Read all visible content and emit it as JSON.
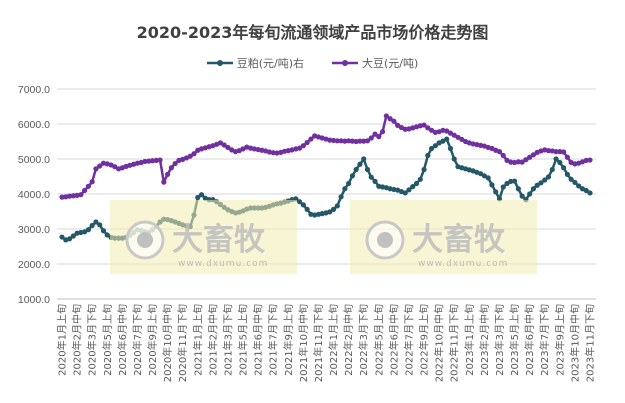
{
  "chart_data": {
    "type": "line",
    "title": "2020-2023年每旬流通领域产品市场价格走势图",
    "ylim": [
      1000,
      7000
    ],
    "y_ticks": [
      "1000.0",
      "2000.0",
      "3000.0",
      "4000.0",
      "5000.0",
      "6000.0",
      "7000.0"
    ],
    "grid": true,
    "legend_placement": "top",
    "x_tick_labels": [
      "2020年1月上旬",
      "2020年2月中旬",
      "2020年3月下旬",
      "2020年5月上旬",
      "2020年6月中旬",
      "2020年7月下旬",
      "2020年9月上旬",
      "2020年10月中旬",
      "2020年11月下旬",
      "2021年1月上旬",
      "2021年2月中旬",
      "2021年3月下旬",
      "2021年5月上旬",
      "2021年6月中旬",
      "2021年7月下旬",
      "2021年9月上旬",
      "2021年10月中旬",
      "2021年11月下旬",
      "2022年1月上旬",
      "2022年2月中旬",
      "2022年3月下旬",
      "2022年5月上旬",
      "2022年6月中旬",
      "2022年7月下旬",
      "2022年9月上旬",
      "2022年10月中旬",
      "2022年11月下旬",
      "2023年1月上旬",
      "2023年2月中旬",
      "2023年3月下旬",
      "2023年5月上旬",
      "2023年6月中旬",
      "2023年7月下旬",
      "2023年9月上旬",
      "2023年10月中旬",
      "2023年11月下旬"
    ],
    "series": [
      {
        "name": "豆粕(元/吨)右",
        "color": "#245868",
        "values": [
          2770,
          2690,
          2720,
          2800,
          2880,
          2900,
          2920,
          2980,
          3100,
          3200,
          3120,
          2950,
          2830,
          2760,
          2740,
          2740,
          2740,
          2760,
          2820,
          2900,
          2980,
          2960,
          2920,
          2900,
          2980,
          3080,
          3200,
          3280,
          3270,
          3240,
          3200,
          3160,
          3120,
          3090,
          3070,
          3400,
          3900,
          3980,
          3880,
          3840,
          3840,
          3780,
          3700,
          3620,
          3550,
          3500,
          3460,
          3480,
          3520,
          3570,
          3600,
          3600,
          3600,
          3600,
          3620,
          3650,
          3690,
          3720,
          3740,
          3770,
          3800,
          3840,
          3860,
          3780,
          3690,
          3560,
          3420,
          3400,
          3420,
          3440,
          3460,
          3490,
          3560,
          3660,
          3920,
          4150,
          4300,
          4520,
          4700,
          4850,
          5000,
          4700,
          4480,
          4360,
          4220,
          4200,
          4180,
          4150,
          4130,
          4110,
          4070,
          4030,
          4120,
          4210,
          4300,
          4420,
          4700,
          5100,
          5300,
          5380,
          5460,
          5510,
          5570,
          5300,
          5000,
          4780,
          4750,
          4720,
          4690,
          4660,
          4620,
          4580,
          4520,
          4460,
          4260,
          4060,
          3860,
          4200,
          4300,
          4360,
          4370,
          4150,
          3940,
          3840,
          4000,
          4150,
          4250,
          4320,
          4400,
          4490,
          4700,
          5000,
          4900,
          4750,
          4560,
          4420,
          4330,
          4230,
          4150,
          4100,
          4030
        ]
      },
      {
        "name": "大豆(元/吨)",
        "color": "#7030A0",
        "values": [
          3910,
          3920,
          3940,
          3950,
          3960,
          3980,
          4100,
          4220,
          4350,
          4720,
          4800,
          4880,
          4860,
          4830,
          4780,
          4720,
          4750,
          4790,
          4820,
          4850,
          4880,
          4900,
          4930,
          4940,
          4950,
          4960,
          4970,
          4340,
          4560,
          4750,
          4870,
          4960,
          4990,
          5030,
          5080,
          5150,
          5250,
          5290,
          5320,
          5350,
          5380,
          5420,
          5460,
          5400,
          5330,
          5260,
          5210,
          5240,
          5290,
          5340,
          5310,
          5290,
          5270,
          5250,
          5230,
          5200,
          5180,
          5170,
          5190,
          5220,
          5240,
          5260,
          5290,
          5310,
          5380,
          5470,
          5570,
          5660,
          5630,
          5600,
          5570,
          5540,
          5530,
          5520,
          5520,
          5510,
          5520,
          5510,
          5500,
          5510,
          5510,
          5520,
          5600,
          5710,
          5640,
          5780,
          6230,
          6150,
          6080,
          5960,
          5900,
          5850,
          5860,
          5890,
          5920,
          5950,
          5970,
          5890,
          5820,
          5760,
          5780,
          5820,
          5800,
          5740,
          5680,
          5620,
          5560,
          5500,
          5460,
          5430,
          5410,
          5390,
          5370,
          5330,
          5300,
          5250,
          5210,
          5100,
          4960,
          4910,
          4900,
          4920,
          4910,
          4980,
          5050,
          5120,
          5190,
          5230,
          5260,
          5240,
          5230,
          5210,
          5210,
          5200,
          5050,
          4900,
          4860,
          4880,
          4920,
          4960,
          4970
        ]
      }
    ]
  },
  "watermark": {
    "brand": "大畜牧",
    "site": "www.dxumu.com",
    "color": "#F3EDB0"
  }
}
